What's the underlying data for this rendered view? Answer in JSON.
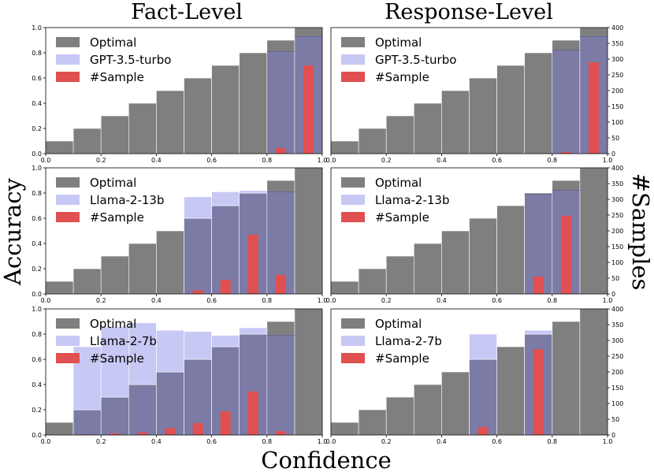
{
  "figure": {
    "col_titles": [
      "Fact-Level",
      "Response-Level"
    ],
    "xlabel": "Confidence",
    "ylabel_left": "Accuracy",
    "ylabel_right": "#Samples"
  },
  "colors": {
    "optimal": "#7f7f7f",
    "model": "#c8c8f5",
    "overlap": "#7b7ba6",
    "sample": "#e05050"
  },
  "chart_data": [
    {
      "type": "bar",
      "title": "Fact-Level",
      "row": 0,
      "col": 0,
      "bin_edges": [
        0,
        0.1,
        0.2,
        0.3,
        0.4,
        0.5,
        0.6,
        0.7,
        0.8,
        0.9,
        1.0
      ],
      "legend": [
        "Optimal",
        "GPT-3.5-turbo",
        "#Sample"
      ],
      "optimal": [
        0.1,
        0.2,
        0.3,
        0.4,
        0.5,
        0.6,
        0.7,
        0.8,
        0.9,
        1.0
      ],
      "model": [
        null,
        null,
        null,
        null,
        null,
        null,
        null,
        null,
        0.81,
        0.93
      ],
      "samples": [
        0,
        0,
        0,
        0,
        0,
        0,
        0,
        0,
        18,
        280
      ],
      "ylim": [
        0,
        1.0
      ],
      "y2lim": [
        0,
        400
      ],
      "xticks": [
        "0.0",
        "0.2",
        "0.4",
        "0.6",
        "0.8",
        "1.0"
      ],
      "yticks": [
        "0.0",
        "0.2",
        "0.4",
        "0.6",
        "0.8",
        "1.0"
      ],
      "y2ticks": []
    },
    {
      "type": "bar",
      "title": "Response-Level",
      "row": 0,
      "col": 1,
      "bin_edges": [
        0,
        0.1,
        0.2,
        0.3,
        0.4,
        0.5,
        0.6,
        0.7,
        0.8,
        0.9,
        1.0
      ],
      "legend": [
        "Optimal",
        "GPT-3.5-turbo",
        "#Sample"
      ],
      "optimal": [
        0.1,
        0.2,
        0.3,
        0.4,
        0.5,
        0.6,
        0.7,
        0.8,
        0.9,
        1.0
      ],
      "model": [
        null,
        null,
        null,
        null,
        null,
        null,
        null,
        null,
        0.82,
        0.93
      ],
      "samples": [
        0,
        0,
        0,
        0,
        0,
        0,
        0,
        0,
        5,
        290
      ],
      "ylim": [
        0,
        1.0
      ],
      "y2lim": [
        0,
        400
      ],
      "xticks": [
        "0.0",
        "0.2",
        "0.4",
        "0.6",
        "0.8",
        "1.0"
      ],
      "yticks": [],
      "y2ticks": [
        "0",
        "50",
        "100",
        "150",
        "200",
        "250",
        "300",
        "350",
        "400"
      ]
    },
    {
      "type": "bar",
      "row": 1,
      "col": 0,
      "bin_edges": [
        0,
        0.1,
        0.2,
        0.3,
        0.4,
        0.5,
        0.6,
        0.7,
        0.8,
        0.9,
        1.0
      ],
      "legend": [
        "Optimal",
        "Llama-2-13b",
        "#Sample"
      ],
      "optimal": [
        0.1,
        0.2,
        0.3,
        0.4,
        0.5,
        0.6,
        0.7,
        0.8,
        0.9,
        1.0
      ],
      "model": [
        null,
        null,
        null,
        null,
        null,
        0.77,
        0.81,
        0.82,
        0.81,
        null
      ],
      "samples": [
        0,
        0,
        0,
        0,
        0,
        12,
        45,
        188,
        60,
        0
      ],
      "ylim": [
        0,
        1.0
      ],
      "y2lim": [
        0,
        400
      ],
      "xticks": [
        "0.0",
        "0.2",
        "0.4",
        "0.6",
        "0.8",
        "1.0"
      ],
      "yticks": [
        "0.0",
        "0.2",
        "0.4",
        "0.6",
        "0.8",
        "1.0"
      ],
      "y2ticks": []
    },
    {
      "type": "bar",
      "row": 1,
      "col": 1,
      "bin_edges": [
        0,
        0.1,
        0.2,
        0.3,
        0.4,
        0.5,
        0.6,
        0.7,
        0.8,
        0.9,
        1.0
      ],
      "legend": [
        "Optimal",
        "Llama-2-13b",
        "#Sample"
      ],
      "optimal": [
        0.1,
        0.2,
        0.3,
        0.4,
        0.5,
        0.6,
        0.7,
        0.8,
        0.9,
        1.0
      ],
      "model": [
        null,
        null,
        null,
        null,
        null,
        null,
        null,
        0.79,
        0.82,
        null
      ],
      "samples": [
        0,
        0,
        0,
        0,
        0,
        0,
        0,
        55,
        248,
        0
      ],
      "ylim": [
        0,
        1.0
      ],
      "y2lim": [
        0,
        400
      ],
      "xticks": [
        "0.0",
        "0.2",
        "0.4",
        "0.6",
        "0.8",
        "1.0"
      ],
      "yticks": [],
      "y2ticks": [
        "0",
        "50",
        "100",
        "150",
        "200",
        "250",
        "300",
        "350",
        "400"
      ]
    },
    {
      "type": "bar",
      "row": 2,
      "col": 0,
      "bin_edges": [
        0,
        0.1,
        0.2,
        0.3,
        0.4,
        0.5,
        0.6,
        0.7,
        0.8,
        0.9,
        1.0
      ],
      "legend": [
        "Optimal",
        "Llama-2-7b",
        "#Sample"
      ],
      "optimal": [
        0.1,
        0.2,
        0.3,
        0.4,
        0.5,
        0.6,
        0.7,
        0.8,
        0.9,
        1.0
      ],
      "model": [
        null,
        0.7,
        0.86,
        0.89,
        0.83,
        0.82,
        0.79,
        0.85,
        0.79,
        null
      ],
      "samples": [
        0,
        2,
        5,
        8,
        22,
        38,
        75,
        138,
        12,
        0
      ],
      "ylim": [
        0,
        1.0
      ],
      "y2lim": [
        0,
        400
      ],
      "xticks": [
        "0.0",
        "0.2",
        "0.4",
        "0.6",
        "0.8",
        "1.0"
      ],
      "yticks": [
        "0.0",
        "0.2",
        "0.4",
        "0.6",
        "0.8",
        "1.0"
      ],
      "y2ticks": []
    },
    {
      "type": "bar",
      "row": 2,
      "col": 1,
      "bin_edges": [
        0,
        0.1,
        0.2,
        0.3,
        0.4,
        0.5,
        0.6,
        0.7,
        0.8,
        0.9,
        1.0
      ],
      "legend": [
        "Optimal",
        "Llama-2-7b",
        "#Sample"
      ],
      "optimal": [
        0.1,
        0.2,
        0.3,
        0.4,
        0.5,
        0.6,
        0.7,
        0.8,
        0.9,
        1.0
      ],
      "model": [
        null,
        null,
        null,
        null,
        null,
        0.8,
        null,
        0.83,
        null,
        null
      ],
      "samples": [
        0,
        0,
        0,
        0,
        0,
        25,
        0,
        272,
        0,
        0
      ],
      "ylim": [
        0,
        1.0
      ],
      "y2lim": [
        0,
        400
      ],
      "xticks": [
        "0.0",
        "0.2",
        "0.4",
        "0.6",
        "0.8",
        "1.0"
      ],
      "yticks": [],
      "y2ticks": [
        "0",
        "50",
        "100",
        "150",
        "200",
        "250",
        "300",
        "350",
        "400"
      ]
    }
  ]
}
